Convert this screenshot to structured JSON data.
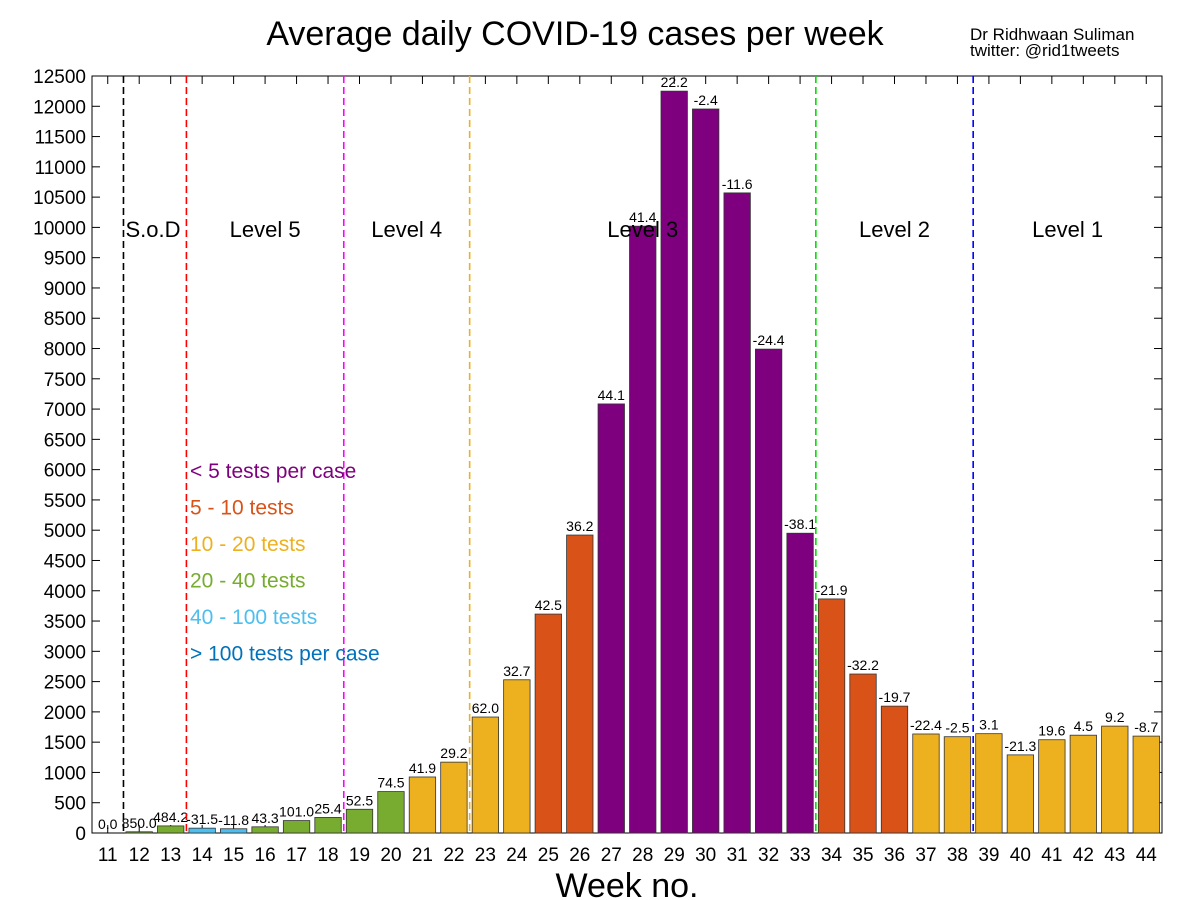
{
  "chart_data": {
    "type": "bar",
    "title": "Average daily COVID-19 cases per week",
    "credit": [
      "Dr Ridhwaan Suliman",
      "twitter: @rid1tweets"
    ],
    "xlabel": "Week no.",
    "ylabel": "",
    "ylim": [
      0,
      12500
    ],
    "ytick_step": 500,
    "grid": false,
    "categories": [
      "11",
      "12",
      "13",
      "14",
      "15",
      "16",
      "17",
      "18",
      "19",
      "20",
      "21",
      "22",
      "23",
      "24",
      "25",
      "26",
      "27",
      "28",
      "29",
      "30",
      "31",
      "32",
      "33",
      "34",
      "35",
      "36",
      "37",
      "38",
      "39",
      "40",
      "41",
      "42",
      "43",
      "44"
    ],
    "values": [
      0,
      20,
      117,
      80,
      70,
      102,
      205,
      257,
      392,
      684,
      925,
      1170,
      1915,
      2530,
      3615,
      4920,
      7085,
      10020,
      12250,
      11955,
      10570,
      7990,
      4950,
      3865,
      2625,
      2095,
      1635,
      1590,
      1640,
      1290,
      1540,
      1615,
      1765,
      1600
    ],
    "data_labels": [
      "0.0",
      "850.0",
      "484.2",
      "-31.5",
      "-11.8",
      "43.3",
      "101.0",
      "25.4",
      "52.5",
      "74.5",
      "41.9",
      "29.2",
      "62.0",
      "32.7",
      "42.5",
      "36.2",
      "44.1",
      "41.4",
      "22.2",
      "-2.4",
      "-11.6",
      "-24.4",
      "-38.1",
      "-21.9",
      "-32.2",
      "-19.7",
      "-22.4",
      "-2.5",
      "3.1",
      "-21.3",
      "19.6",
      "4.5",
      "9.2",
      "-8.7"
    ],
    "bar_groups": [
      "none",
      "g40",
      "g40",
      "g100",
      "g100",
      "g40",
      "g40",
      "g40",
      "g40",
      "g40",
      "g20",
      "g20",
      "g20",
      "g20",
      "g10",
      "g10",
      "g5",
      "g5",
      "g5",
      "g5",
      "g5",
      "g5",
      "g5",
      "g10",
      "g10",
      "g10",
      "g20",
      "g20",
      "g20",
      "g20",
      "g20",
      "g20",
      "g20",
      "g20"
    ],
    "legend": [
      {
        "key": "g5",
        "label": "< 5 tests per case",
        "color": "#7e007e"
      },
      {
        "key": "g10",
        "label": "5 - 10 tests",
        "color": "#d95319"
      },
      {
        "key": "g20",
        "label": "10 - 20 tests",
        "color": "#edb120"
      },
      {
        "key": "g40",
        "label": "20 - 40 tests",
        "color": "#77ac30"
      },
      {
        "key": "g100",
        "label": "40 - 100 tests",
        "color": "#4dbeee"
      },
      {
        "key": "g100p",
        "label": "> 100 tests per case",
        "color": "#0072bd"
      }
    ],
    "legend_placement": "middle-left",
    "phases": [
      {
        "label": "S.o.D",
        "at": 11.5,
        "color": "#000000"
      },
      {
        "label": "Level 5",
        "at": 13.5,
        "color": "#ff0000"
      },
      {
        "label": "Level 4",
        "at": 18.5,
        "color": "#ff00ff"
      },
      {
        "label": "Level 3",
        "at": 22.5,
        "color": "#edb120"
      },
      {
        "label": "Level 2",
        "at": 33.5,
        "color": "#00dd00"
      },
      {
        "label": "Level 1",
        "at": 38.5,
        "color": "#0000ff"
      }
    ]
  }
}
